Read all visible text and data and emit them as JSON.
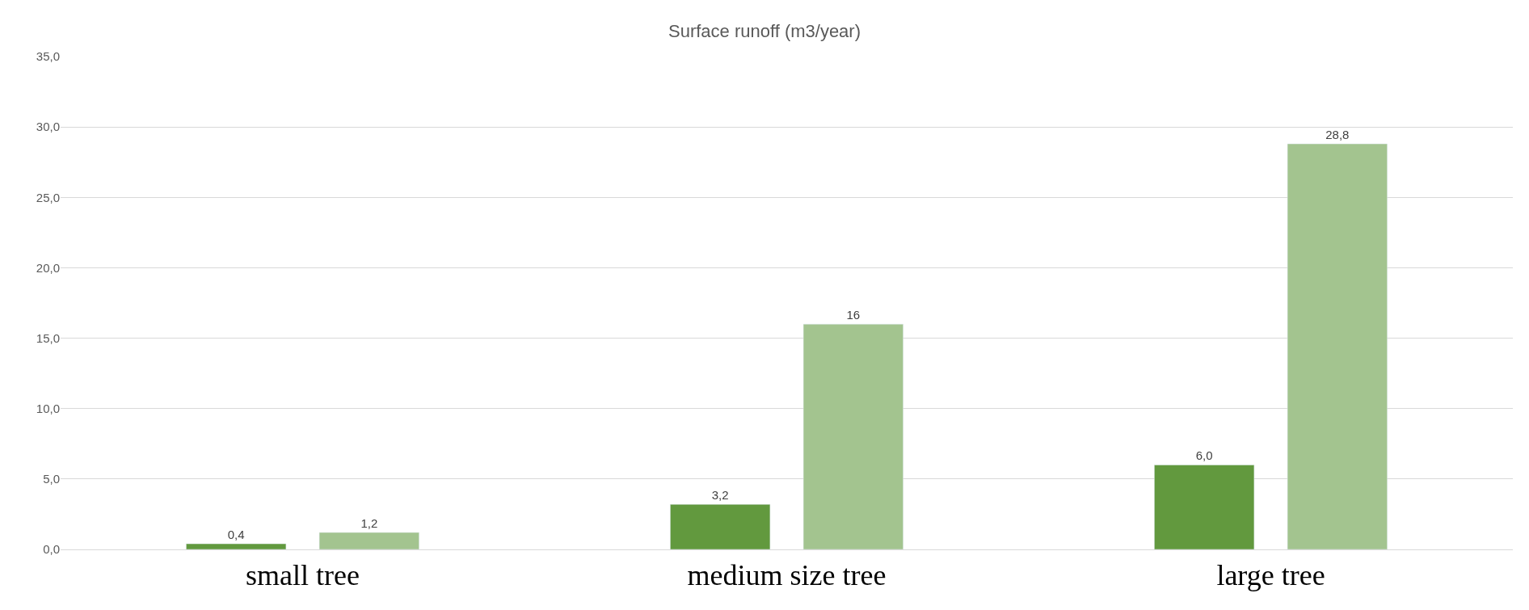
{
  "chart_data": {
    "type": "bar",
    "title": "Surface runoff (m3/year)",
    "categories": [
      "small tree",
      "medium size tree",
      "large tree"
    ],
    "series": [
      {
        "color": "#62993e",
        "values": [
          0.4,
          3.2,
          6.0
        ],
        "value_labels": [
          "0,4",
          "3,2",
          "6,0"
        ]
      },
      {
        "color": "#a3c48f",
        "values": [
          1.2,
          16,
          28.8
        ],
        "value_labels": [
          "1,2",
          "16",
          "28,8"
        ]
      }
    ],
    "ylim": [
      0,
      35
    ],
    "yticks": [
      {
        "value": 0,
        "label": "0,0"
      },
      {
        "value": 5,
        "label": "5,0"
      },
      {
        "value": 10,
        "label": "10,0"
      },
      {
        "value": 15,
        "label": "15,0"
      },
      {
        "value": 20,
        "label": "20,0"
      },
      {
        "value": 25,
        "label": "25,0"
      },
      {
        "value": 30,
        "label": "30,0"
      },
      {
        "value": 35,
        "label": "35,0"
      }
    ],
    "grid": "y",
    "legend": false
  }
}
